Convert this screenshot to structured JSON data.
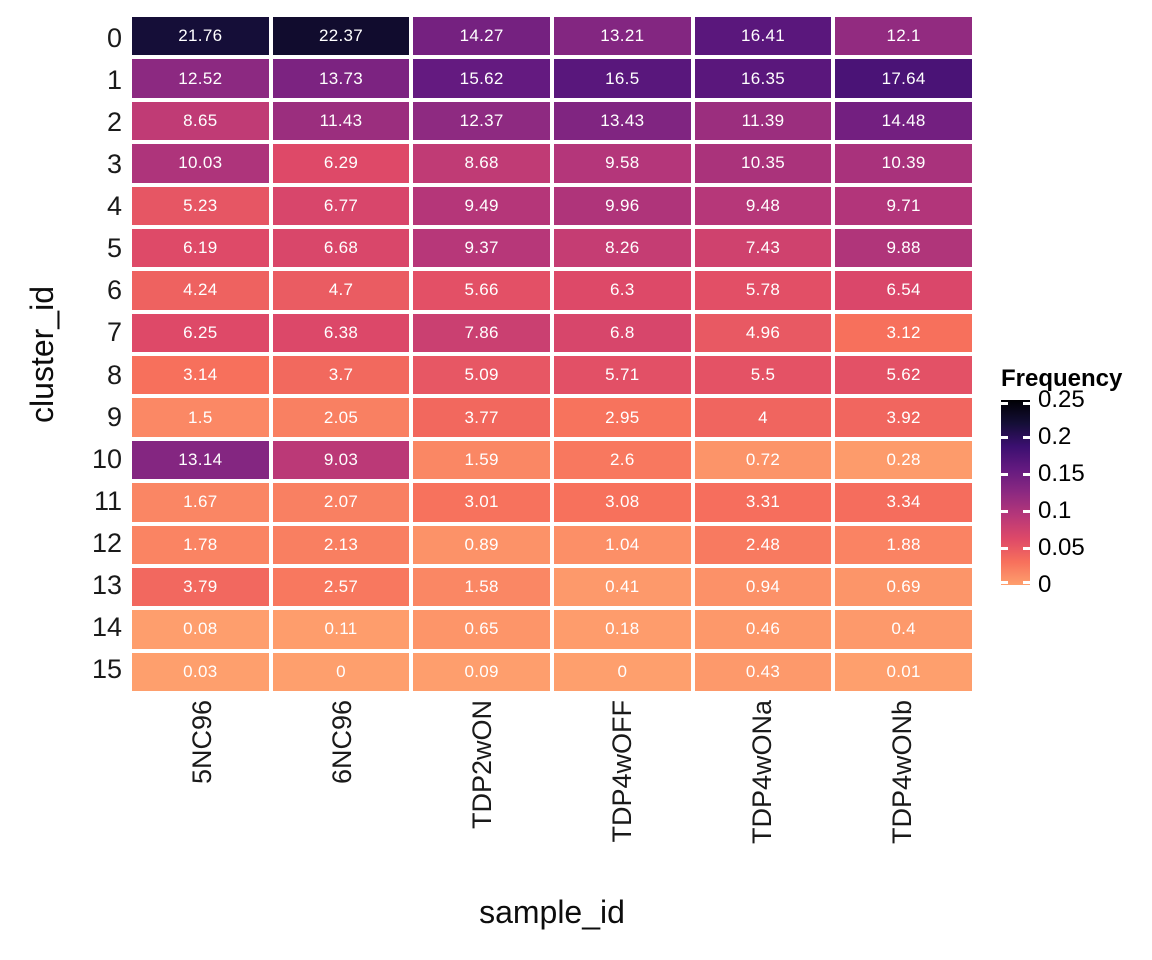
{
  "chart_data": {
    "type": "heatmap",
    "title": "",
    "xlabel": "sample_id",
    "ylabel": "cluster_id",
    "columns": [
      "5NC96",
      "6NC96",
      "TDP2wON",
      "TDP4wOFF",
      "TDP4wONa",
      "TDP4wONb"
    ],
    "rows": [
      "0",
      "1",
      "2",
      "3",
      "4",
      "5",
      "6",
      "7",
      "8",
      "9",
      "10",
      "11",
      "12",
      "13",
      "14",
      "15"
    ],
    "values": [
      [
        21.76,
        22.37,
        14.27,
        13.21,
        16.41,
        12.1
      ],
      [
        12.52,
        13.73,
        15.62,
        16.5,
        16.35,
        17.64
      ],
      [
        8.65,
        11.43,
        12.37,
        13.43,
        11.39,
        14.48
      ],
      [
        10.03,
        6.29,
        8.68,
        9.58,
        10.35,
        10.39
      ],
      [
        5.23,
        6.77,
        9.49,
        9.96,
        9.48,
        9.71
      ],
      [
        6.19,
        6.68,
        9.37,
        8.26,
        7.43,
        9.88
      ],
      [
        4.24,
        4.7,
        5.66,
        6.3,
        5.78,
        6.54
      ],
      [
        6.25,
        6.38,
        7.86,
        6.8,
        4.96,
        3.12
      ],
      [
        3.14,
        3.7,
        5.09,
        5.71,
        5.5,
        5.62
      ],
      [
        1.5,
        2.05,
        3.77,
        2.95,
        4,
        3.92
      ],
      [
        13.14,
        9.03,
        1.59,
        2.6,
        0.72,
        0.28
      ],
      [
        1.67,
        2.07,
        3.01,
        3.08,
        3.31,
        3.34
      ],
      [
        1.78,
        2.13,
        0.89,
        1.04,
        2.48,
        1.88
      ],
      [
        3.79,
        2.57,
        1.58,
        0.41,
        0.94,
        0.69
      ],
      [
        0.08,
        0.11,
        0.65,
        0.18,
        0.46,
        0.4
      ],
      [
        0.03,
        0,
        0.09,
        0,
        0.43,
        0.01
      ]
    ],
    "values_unit": "percent (cell labels); legend shown as fraction",
    "legend": {
      "title": "Frequency",
      "tick_labels": [
        "0.25",
        "0.2",
        "0.15",
        "0.1",
        "0.05",
        "0"
      ],
      "position": "right"
    },
    "color_scale": {
      "name": "magma-reversed",
      "domain": [
        0,
        0.25
      ],
      "low_color": "#fe9f6d",
      "high_color": "#000004"
    },
    "cell_text_color": "#ffffff",
    "grid_gap_color": "#ffffff",
    "axis_text_color": "#1a1a1a"
  }
}
